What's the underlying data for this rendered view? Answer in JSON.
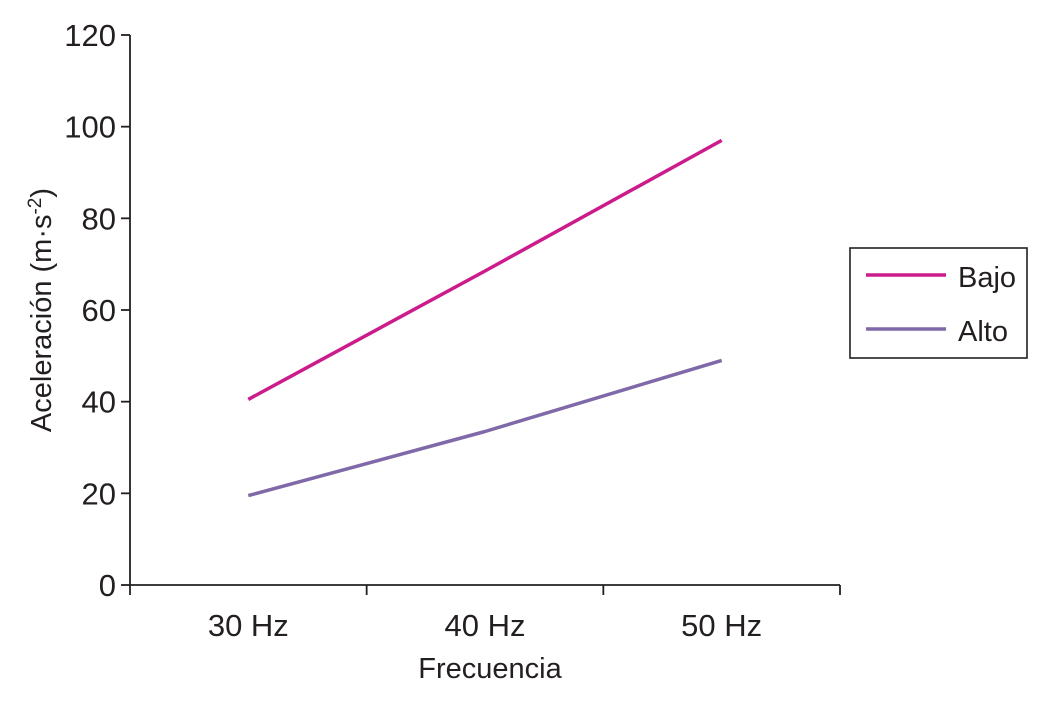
{
  "chart_data": {
    "type": "line",
    "title": "",
    "xlabel": "Frecuencia",
    "ylabel": "Aceleración (m·s-2)",
    "ylabel_parts": {
      "base": "Aceleración (m·s",
      "superscript": "-2",
      "close": ")"
    },
    "categories": [
      "30 Hz",
      "40 Hz",
      "50 Hz"
    ],
    "series": [
      {
        "name": "Bajo",
        "color": "#cc1b8b",
        "values": [
          40.5,
          68.5,
          97
        ]
      },
      {
        "name": "Alto",
        "color": "#7f69a8",
        "values": [
          19.5,
          33.5,
          49
        ]
      }
    ],
    "ylim": [
      0,
      120
    ],
    "yticks": [
      0,
      20,
      40,
      60,
      80,
      100,
      120
    ],
    "grid": false,
    "legend_position": "right"
  },
  "colors": {
    "axis": "#231f20",
    "bajo": "#cc1b8b",
    "alto": "#7f69a8"
  }
}
